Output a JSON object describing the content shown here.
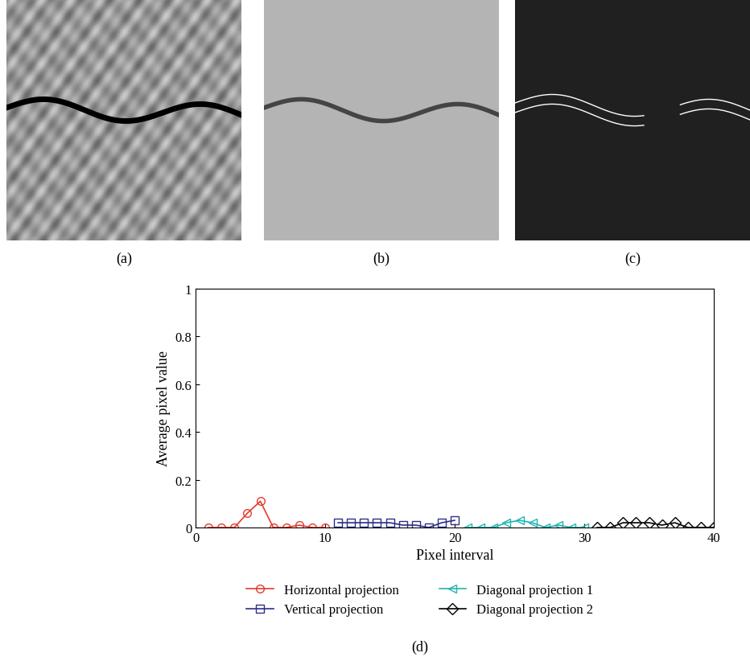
{
  "panel_labels": [
    "(a)",
    "(b)",
    "(c)",
    "(d)"
  ],
  "chart_data": {
    "type": "line",
    "x_label": "Pixel interval",
    "y_label": "Average pixel value",
    "xlim": [
      0,
      40
    ],
    "xticks": [
      0,
      10,
      20,
      30,
      40
    ],
    "ylim": [
      0,
      1
    ],
    "yticks": [
      0,
      0.2,
      0.4,
      0.6,
      0.8,
      1
    ],
    "grid": false,
    "legend": "lower center",
    "series": [
      {
        "name": "Horizontal projection",
        "color": "#e8392c",
        "marker": "circle",
        "x": [
          1,
          2,
          3,
          4,
          5,
          6,
          7,
          8,
          9,
          10
        ],
        "values": [
          0,
          0,
          0,
          0.06,
          0.11,
          0,
          0,
          0.01,
          0,
          0
        ]
      },
      {
        "name": "Vertical projection",
        "color": "#2e2e8c",
        "marker": "square",
        "x": [
          11,
          12,
          13,
          14,
          15,
          16,
          17,
          18,
          19,
          20
        ],
        "values": [
          0.02,
          0.02,
          0.02,
          0.02,
          0.02,
          0.01,
          0.01,
          0,
          0.02,
          0.03
        ]
      },
      {
        "name": "Diagonal projection 1",
        "color": "#22b5b0",
        "marker": "triangle_left",
        "x": [
          21,
          22,
          23,
          24,
          25,
          26,
          27,
          28,
          29,
          30
        ],
        "values": [
          0,
          0,
          0,
          0.02,
          0.03,
          0.02,
          0,
          0.01,
          0,
          0
        ]
      },
      {
        "name": "Diagonal projection 2",
        "color": "#000000",
        "marker": "diamond",
        "x": [
          31,
          32,
          33,
          34,
          35,
          36,
          37,
          38,
          39,
          40
        ],
        "values": [
          0,
          0,
          0.02,
          0.02,
          0.02,
          0.01,
          0.02,
          0,
          0,
          0
        ]
      }
    ]
  }
}
